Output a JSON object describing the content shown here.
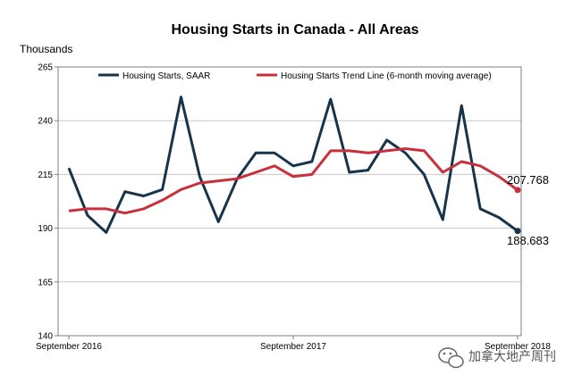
{
  "chart_data": {
    "type": "line",
    "title": "Housing Starts in Canada - All Areas",
    "ylabel": "Thousands",
    "xlabel": "",
    "ylim": [
      140,
      265
    ],
    "yticks": [
      140,
      165,
      190,
      215,
      240,
      265
    ],
    "x_tick_labels": [
      "September 2016",
      "September 2017",
      "September 2018"
    ],
    "x": [
      "2016-09",
      "2016-10",
      "2016-11",
      "2016-12",
      "2017-01",
      "2017-02",
      "2017-03",
      "2017-04",
      "2017-05",
      "2017-06",
      "2017-07",
      "2017-08",
      "2017-09",
      "2017-10",
      "2017-11",
      "2017-12",
      "2018-01",
      "2018-02",
      "2018-03",
      "2018-04",
      "2018-05",
      "2018-06",
      "2018-07",
      "2018-08",
      "2018-09"
    ],
    "grid": true,
    "legend_placement": "top",
    "series": [
      {
        "name": "Housing Starts, SAAR",
        "color": "#17344d",
        "values": [
          218,
          196,
          188,
          207,
          205,
          208,
          251,
          214,
          193,
          213,
          225,
          225,
          219,
          221,
          250,
          216,
          217,
          231,
          225,
          215,
          194,
          247,
          199,
          195,
          188.683
        ],
        "end_label": "188.683"
      },
      {
        "name": "Housing Starts Trend Line (6-month moving average)",
        "color": "#c8303c",
        "values": [
          198,
          199,
          199,
          197,
          199,
          203,
          208,
          211,
          212,
          213,
          216,
          219,
          214,
          215,
          226,
          226,
          225,
          226,
          227,
          226,
          216,
          221,
          219,
          214,
          207.768
        ],
        "end_label": "207.768"
      }
    ]
  },
  "watermark": {
    "icon": "wechat-icon",
    "text": "加拿大地产周刊"
  }
}
